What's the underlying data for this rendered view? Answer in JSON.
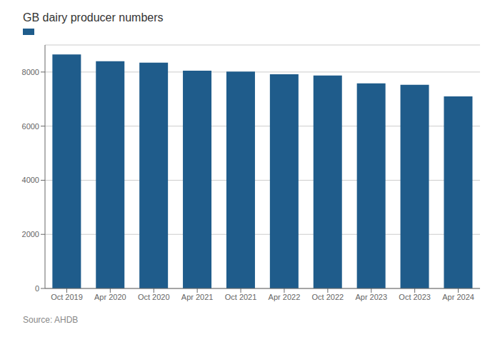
{
  "chart_data": {
    "type": "bar",
    "title": "GB dairy producer numbers",
    "categories": [
      "Oct 2019",
      "Apr 2020",
      "Oct 2020",
      "Apr 2021",
      "Oct 2021",
      "Apr 2022",
      "Oct 2022",
      "Apr 2023",
      "Oct 2023",
      "Apr 2024"
    ],
    "values": [
      8650,
      8400,
      8350,
      8050,
      8020,
      7920,
      7870,
      7580,
      7530,
      7100
    ],
    "color": "#1f5c8b",
    "ylim": [
      0,
      9000
    ],
    "yticks": [
      0,
      2000,
      4000,
      6000,
      8000
    ],
    "grid": true,
    "annotations": [
      "Source: AHDB"
    ]
  }
}
